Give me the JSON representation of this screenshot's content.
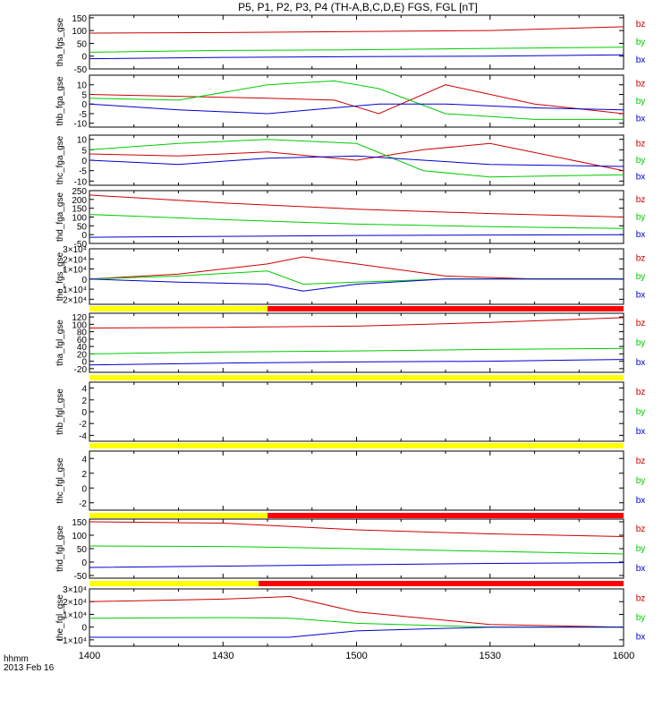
{
  "title": "P5, P1, P2, P3, P4 (TH-A,B,C,D,E) FGS, FGL [nT]",
  "colors": {
    "bz": "#cc0000",
    "by": "#00cc00",
    "bx": "#0000cc",
    "bar_yellow": "#ffff00",
    "bar_red": "#ff0000",
    "axis": "#000000"
  },
  "footer": {
    "time_format": "hhmm",
    "date": "2013 Feb 16"
  },
  "chart_data": [
    {
      "type": "line",
      "name": "tha_fgs_gse",
      "ylabel": "tha_fgs_gse",
      "ylim": [
        -50,
        160
      ],
      "yticks": [
        -50,
        0,
        50,
        100,
        150
      ],
      "xticks": [
        "1400",
        "1430",
        "1500",
        "1530",
        "1600"
      ],
      "series": [
        {
          "name": "bz",
          "x": [
            0,
            30,
            60,
            90,
            120
          ],
          "values": [
            90,
            92,
            96,
            100,
            115
          ]
        },
        {
          "name": "by",
          "x": [
            0,
            30,
            60,
            90,
            120
          ],
          "values": [
            15,
            22,
            25,
            30,
            35
          ]
        },
        {
          "name": "bx",
          "x": [
            0,
            30,
            60,
            90,
            120
          ],
          "values": [
            -10,
            -5,
            -2,
            0,
            5
          ]
        }
      ]
    },
    {
      "type": "line",
      "name": "thb_fga_gse",
      "ylabel": "thb_fga_gse",
      "ylim": [
        -12,
        15
      ],
      "yticks": [
        -10,
        -5,
        0,
        5,
        10
      ],
      "series": [
        {
          "name": "bz",
          "x": [
            0,
            20,
            40,
            55,
            65,
            80,
            100,
            120
          ],
          "values": [
            5,
            4,
            3,
            2,
            -5,
            10,
            0,
            -5
          ]
        },
        {
          "name": "by",
          "x": [
            0,
            20,
            40,
            55,
            65,
            80,
            100,
            120
          ],
          "values": [
            3,
            2,
            10,
            12,
            8,
            -5,
            -8,
            -8
          ]
        },
        {
          "name": "bx",
          "x": [
            0,
            20,
            40,
            55,
            65,
            80,
            100,
            120
          ],
          "values": [
            0,
            -3,
            -5,
            -2,
            0,
            0,
            -2,
            -3
          ]
        }
      ]
    },
    {
      "type": "line",
      "name": "thc_fga_gse",
      "ylabel": "thc_fga_gse",
      "ylim": [
        -12,
        12
      ],
      "yticks": [
        -10,
        -5,
        0,
        5,
        10
      ],
      "series": [
        {
          "name": "bz",
          "x": [
            0,
            20,
            40,
            60,
            75,
            90,
            120
          ],
          "values": [
            3,
            2,
            4,
            0,
            5,
            8,
            -5
          ]
        },
        {
          "name": "by",
          "x": [
            0,
            20,
            40,
            60,
            75,
            90,
            120
          ],
          "values": [
            5,
            8,
            10,
            8,
            -5,
            -8,
            -7
          ]
        },
        {
          "name": "bx",
          "x": [
            0,
            20,
            40,
            60,
            75,
            90,
            120
          ],
          "values": [
            0,
            -2,
            1,
            2,
            0,
            -2,
            -3
          ]
        }
      ]
    },
    {
      "type": "line",
      "name": "thd_fga_gse",
      "ylabel": "thd_fga_gse",
      "ylim": [
        -50,
        250
      ],
      "yticks": [
        -50,
        0,
        50,
        100,
        150,
        200,
        250
      ],
      "series": [
        {
          "name": "bz",
          "x": [
            0,
            30,
            60,
            90,
            120
          ],
          "values": [
            225,
            180,
            145,
            120,
            100
          ]
        },
        {
          "name": "by",
          "x": [
            0,
            30,
            60,
            90,
            120
          ],
          "values": [
            115,
            85,
            60,
            45,
            35
          ]
        },
        {
          "name": "bx",
          "x": [
            0,
            30,
            60,
            90,
            120
          ],
          "values": [
            -15,
            -10,
            -5,
            -2,
            0
          ]
        }
      ]
    },
    {
      "type": "line",
      "name": "the_fgs_gse",
      "ylabel": "the_fgs_gse",
      "ylim": [
        -25000,
        30000
      ],
      "yticks": [
        -20000,
        -10000,
        0,
        10000,
        20000,
        30000
      ],
      "ytick_labels": [
        "−2×10⁴",
        "−1×10⁴",
        "0",
        "1×10⁴",
        "2×10⁴",
        "3×10⁴"
      ],
      "quality_bar": [
        {
          "from": 0,
          "to": 40,
          "color": "yellow"
        },
        {
          "from": 40,
          "to": 120,
          "color": "red"
        }
      ],
      "series": [
        {
          "name": "bz",
          "x": [
            0,
            20,
            40,
            48,
            60,
            80,
            100,
            120
          ],
          "values": [
            0,
            5000,
            15000,
            22000,
            15000,
            3000,
            0,
            0
          ]
        },
        {
          "name": "by",
          "x": [
            0,
            20,
            40,
            48,
            60,
            80,
            100,
            120
          ],
          "values": [
            0,
            3000,
            8000,
            -5000,
            -3000,
            0,
            0,
            0
          ]
        },
        {
          "name": "bx",
          "x": [
            0,
            20,
            40,
            48,
            60,
            80,
            100,
            120
          ],
          "values": [
            0,
            -3000,
            -5000,
            -12000,
            -5000,
            0,
            0,
            0
          ]
        }
      ]
    },
    {
      "type": "line",
      "name": "tha_fgl_gse",
      "ylabel": "tha_fgl_gse",
      "ylim": [
        -30,
        130
      ],
      "yticks": [
        -20,
        0,
        20,
        40,
        60,
        80,
        100,
        120
      ],
      "quality_bar": [
        {
          "from": 0,
          "to": 120,
          "color": "yellow"
        }
      ],
      "series": [
        {
          "name": "bz",
          "x": [
            0,
            30,
            60,
            90,
            120
          ],
          "values": [
            90,
            92,
            95,
            105,
            118
          ]
        },
        {
          "name": "by",
          "x": [
            0,
            30,
            60,
            90,
            120
          ],
          "values": [
            20,
            25,
            28,
            32,
            35
          ]
        },
        {
          "name": "bx",
          "x": [
            0,
            30,
            60,
            90,
            120
          ],
          "values": [
            -10,
            -5,
            -2,
            0,
            5
          ]
        }
      ]
    },
    {
      "type": "line",
      "name": "thb_fgl_gse",
      "ylabel": "thb_fgl_gse",
      "ylim": [
        -5,
        5
      ],
      "yticks": [
        -4,
        -2,
        0,
        2,
        4
      ],
      "quality_bar": [
        {
          "from": 0,
          "to": 120,
          "color": "yellow"
        }
      ],
      "series": []
    },
    {
      "type": "line",
      "name": "thc_fgl_gse",
      "ylabel": "thc_fgl_gse",
      "ylim": [
        -3,
        5
      ],
      "yticks": [
        -2,
        0,
        2,
        4
      ],
      "quality_bar": [
        {
          "from": 0,
          "to": 40,
          "color": "yellow"
        },
        {
          "from": 40,
          "to": 120,
          "color": "red"
        }
      ],
      "series": []
    },
    {
      "type": "line",
      "name": "thd_fgl_gse",
      "ylabel": "thd_fgl_gse",
      "ylim": [
        -60,
        160
      ],
      "yticks": [
        -50,
        0,
        50,
        100,
        150
      ],
      "quality_bar": [
        {
          "from": 0,
          "to": 38,
          "color": "yellow"
        },
        {
          "from": 38,
          "to": 120,
          "color": "red"
        }
      ],
      "series": [
        {
          "name": "bz",
          "x": [
            0,
            30,
            60,
            90,
            120
          ],
          "values": [
            150,
            145,
            120,
            105,
            95
          ]
        },
        {
          "name": "by",
          "x": [
            0,
            30,
            60,
            90,
            120
          ],
          "values": [
            60,
            58,
            50,
            40,
            30
          ]
        },
        {
          "name": "bx",
          "x": [
            0,
            30,
            60,
            90,
            120
          ],
          "values": [
            -20,
            -15,
            -10,
            -5,
            -2
          ]
        }
      ]
    },
    {
      "type": "line",
      "name": "the_fgl_gse",
      "ylabel": "the_fgl_gse",
      "ylim": [
        -15000,
        30000
      ],
      "yticks": [
        -10000,
        0,
        10000,
        20000,
        30000
      ],
      "ytick_labels": [
        "−1×10⁴",
        "0",
        "1×10⁴",
        "2×10⁴",
        "3×10⁴"
      ],
      "series": [
        {
          "name": "bz",
          "x": [
            0,
            30,
            45,
            60,
            90,
            120
          ],
          "values": [
            20000,
            22000,
            24000,
            12000,
            2000,
            0
          ]
        },
        {
          "name": "by",
          "x": [
            0,
            30,
            45,
            60,
            90,
            120
          ],
          "values": [
            7000,
            7500,
            7000,
            3000,
            0,
            0
          ]
        },
        {
          "name": "bx",
          "x": [
            0,
            30,
            45,
            60,
            90,
            120
          ],
          "values": [
            -8000,
            -8000,
            -8000,
            -3000,
            0,
            0
          ]
        }
      ]
    }
  ]
}
